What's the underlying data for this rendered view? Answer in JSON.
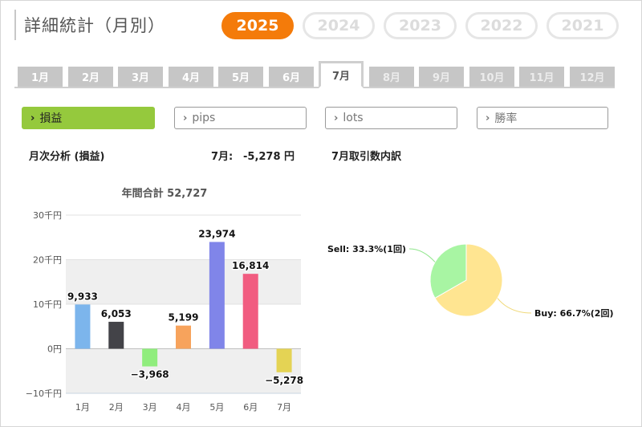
{
  "header": {
    "title": "詳細統計（月別）"
  },
  "years": [
    {
      "label": "2025",
      "active": true
    },
    {
      "label": "2024",
      "active": false
    },
    {
      "label": "2023",
      "active": false
    },
    {
      "label": "2022",
      "active": false
    },
    {
      "label": "2021",
      "active": false
    }
  ],
  "months": [
    "1月",
    "2月",
    "3月",
    "4月",
    "5月",
    "6月",
    "7月",
    "8月",
    "9月",
    "10月",
    "11月",
    "12月"
  ],
  "selected_month": "7月",
  "metrics": [
    {
      "label": "損益",
      "active": true
    },
    {
      "label": "pips",
      "active": false
    },
    {
      "label": "lots",
      "active": false
    },
    {
      "label": "勝率",
      "active": false
    }
  ],
  "monthly": {
    "heading": "月次分析 (損益)",
    "month_label": "7月:",
    "month_value": "-5,278 円",
    "annual_total": "年間合計 52,727"
  },
  "breakdown": {
    "heading": "7月取引数内訳"
  },
  "chart_data": [
    {
      "type": "bar",
      "categories": [
        "1月",
        "2月",
        "3月",
        "4月",
        "5月",
        "6月",
        "7月"
      ],
      "values": [
        9933,
        6053,
        -3968,
        5199,
        23974,
        16814,
        -5278
      ],
      "value_labels": [
        "9,933",
        "6,053",
        "−3,968",
        "5,199",
        "23,974",
        "16,814",
        "−5,278"
      ],
      "colors": [
        "#7cb5ec",
        "#434348",
        "#90ed7d",
        "#f7a35c",
        "#8085e9",
        "#f15c80",
        "#e4d354"
      ],
      "title": "年間合計 52,727",
      "yticks": [
        30000,
        20000,
        10000,
        0,
        -10000
      ],
      "ytick_labels": [
        "30千円",
        "20千円",
        "10千円",
        "0円",
        "−10千円"
      ],
      "ylim": [
        -10000,
        30000
      ],
      "grid": true
    },
    {
      "type": "pie",
      "slices": [
        {
          "name": "Buy",
          "label": "Buy: 66.7%(2回)",
          "value": 66.7,
          "color": "#ffe591"
        },
        {
          "name": "Sell",
          "label": "Sell: 33.3%(1回)",
          "value": 33.3,
          "color": "#a8f5a3"
        }
      ]
    }
  ]
}
